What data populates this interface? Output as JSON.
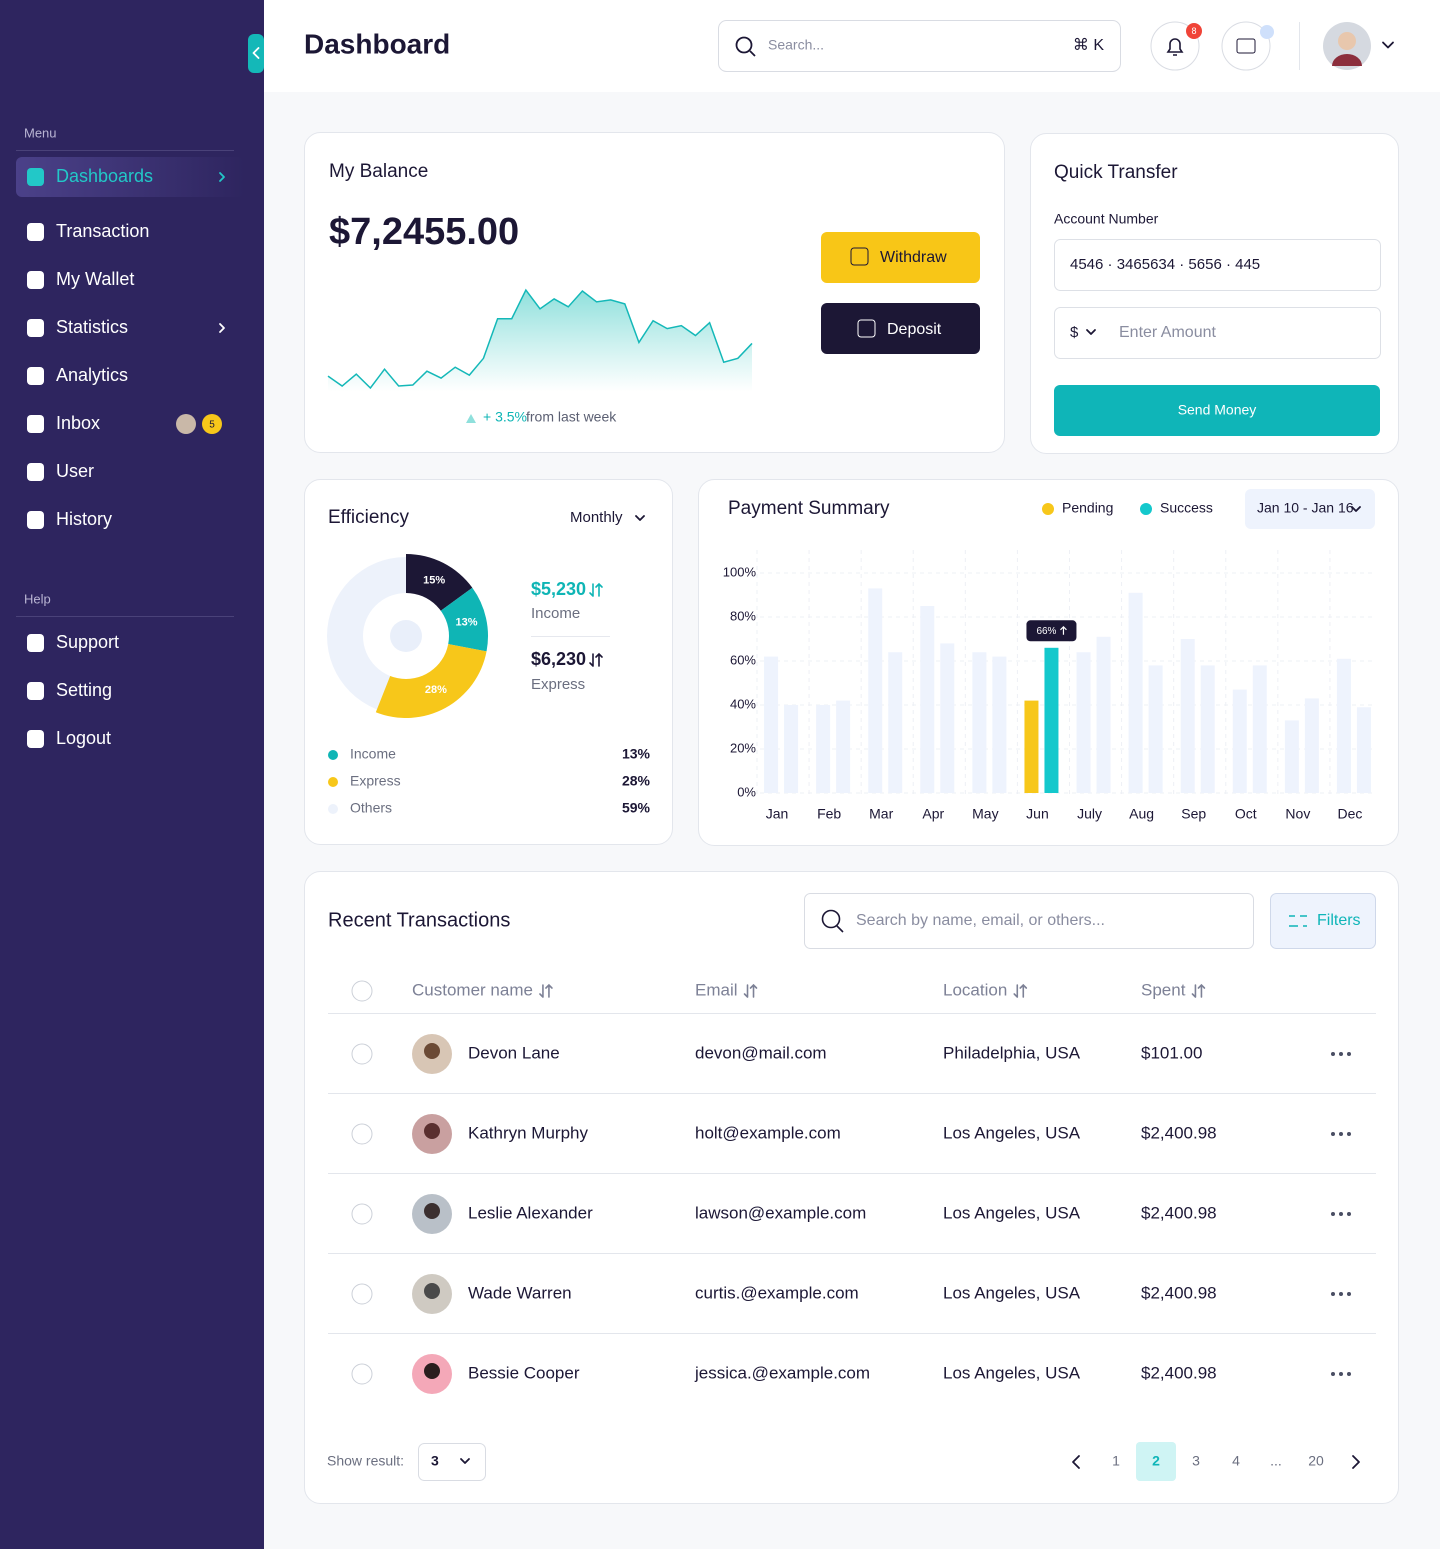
{
  "sidebar": {
    "menu_label": "Menu",
    "menu": [
      "Dashboards",
      "Transaction",
      "My Wallet",
      "Statistics",
      "Analytics",
      "Inbox",
      "User",
      "History"
    ],
    "inbox_badge": "5",
    "help_label": "Help",
    "help": [
      "Support",
      "Setting",
      "Logout"
    ]
  },
  "header": {
    "title": "Dashboard",
    "search": "Search...",
    "shortcut": "⌘ K",
    "notifications": "8"
  },
  "balance": {
    "title": "My Balance",
    "amount": "$7,2455.00",
    "withdraw": "Withdraw",
    "deposit": "Deposit",
    "change": "+ 3.5%",
    "change_text": "from last week"
  },
  "transfer": {
    "title": "Quick Transfer",
    "account_label": "Account Number",
    "account_number": "4546 · 3465634 · 5656 · 445",
    "currency": "$",
    "amount_placeholder": "Enter Amount",
    "button": "Send Money"
  },
  "efficiency": {
    "income": "$5,230",
    "income_label": "Income",
    "express": "$6,230",
    "express_label": "Express"
  },
  "chart_data": [
    {
      "type": "area",
      "color": "#14b8b8",
      "values": [
        22,
        12,
        24,
        10,
        29,
        12,
        13,
        27,
        20,
        31,
        23,
        40,
        80,
        80,
        109,
        90,
        100,
        92,
        108,
        97,
        99,
        95,
        56,
        78,
        70,
        73,
        63,
        76,
        36,
        40,
        55
      ]
    },
    {
      "type": "pie",
      "title": "Efficiency",
      "period": "Monthly",
      "slices": {
        "values": [
          15,
          13,
          28
        ],
        "value_labels": [
          "15%",
          "13%",
          "28%"
        ],
        "colors": [
          "#1c1735",
          "#0fb5b5",
          "#f7c71a"
        ]
      },
      "legend": {
        "categories": [
          "Income",
          "Express",
          "Others"
        ],
        "values": [
          13,
          28,
          59
        ],
        "value_labels": [
          "13%",
          "28%",
          "59%"
        ],
        "colors": [
          "#0fb5b5",
          "#f7c71a",
          "#edf2fb"
        ]
      }
    },
    {
      "type": "bar",
      "title": "Payment Summary",
      "date_range": "Jan 10 - Jan 16",
      "legend": "top-right",
      "categories": [
        "Jan",
        "Feb",
        "Mar",
        "Apr",
        "May",
        "Jun",
        "July",
        "Aug",
        "Sep",
        "Oct",
        "Nov",
        "Dec"
      ],
      "series": [
        {
          "name": "Pending",
          "color": "#f7c71a",
          "values": [
            62,
            40,
            93,
            85,
            64,
            42,
            64,
            91,
            70,
            47,
            33,
            61
          ]
        },
        {
          "name": "Success",
          "color": "#14c8cc",
          "values": [
            40,
            42,
            64,
            68,
            62,
            66,
            71,
            58,
            58,
            58,
            43,
            39
          ],
          "value_labels": [
            null,
            null,
            null,
            null,
            null,
            "66%",
            null,
            null,
            null,
            null,
            null,
            null
          ]
        }
      ],
      "highlight": 5,
      "muted_color": "#eef3fd",
      "ylim": [
        0,
        100
      ],
      "yticks": [
        {
          "value": 0,
          "label": "0%"
        },
        {
          "value": 20,
          "label": "20%"
        },
        {
          "value": 40,
          "label": "40%"
        },
        {
          "value": 60,
          "label": "60%"
        },
        {
          "value": 80,
          "label": "80%"
        },
        {
          "value": 100,
          "label": "100%"
        }
      ],
      "grid": true
    }
  ],
  "transactions": {
    "title": "Recent Transactions",
    "search": "Search by name, email, or others...",
    "filters": "Filters",
    "columns": [
      "Customer name",
      "Email",
      "Location",
      "Spent"
    ],
    "rows": [
      [
        "Devon Lane",
        "devon@mail.com",
        "Philadelphia, USA",
        "$101.00"
      ],
      [
        "Kathryn Murphy",
        "holt@example.com",
        "Los Angeles, USA",
        "$2,400.98"
      ],
      [
        "Leslie Alexander",
        "lawson@example.com",
        "Los Angeles, USA",
        "$2,400.98"
      ],
      [
        "Wade Warren",
        "curtis.@example.com",
        "Los Angeles, USA",
        "$2,400.98"
      ],
      [
        "Bessie Cooper",
        "jessica.@example.com",
        "Los Angeles, USA",
        "$2,400.98"
      ]
    ],
    "show_result": "Show result:",
    "page_size": "3",
    "pages": [
      "1",
      "2",
      "3",
      "4",
      "...",
      "20"
    ],
    "current_page_index": 1
  }
}
